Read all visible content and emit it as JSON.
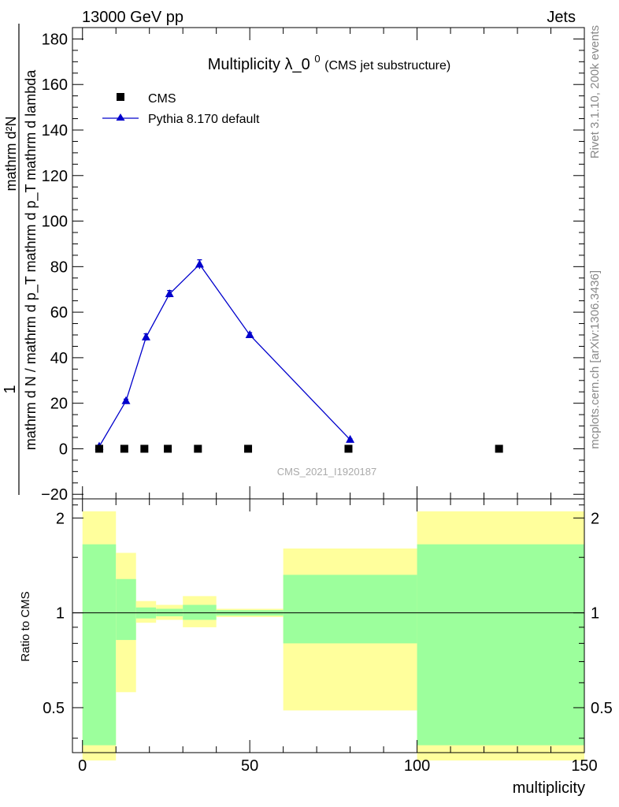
{
  "header": {
    "left": "13000 GeV pp",
    "right": "Jets"
  },
  "side_labels": {
    "rivet": "Rivet 3.1.10,  200k events",
    "mcplots": "mcplots.cern.ch [arXiv:1306.3436]"
  },
  "chart_data": {
    "type": "scatter",
    "title_main": "Multiplicity λ_0",
    "title_sup": "0",
    "title_sub": " (CMS jet substructure)",
    "analysis_label": "CMS_2021_I1920187",
    "ylabel_numerator": "1",
    "ylabel_denominator": "mathrm d N / mathrm d p_T mathrm d p_T mathrm d lambda",
    "ylabel_top": "mathrm d²N",
    "xlabel": "multiplicity",
    "ratio_ylabel": "Ratio to CMS",
    "xlim": [
      -3,
      150
    ],
    "ylim": [
      -22,
      185
    ],
    "ratio_ylim": [
      0.36,
      2.3
    ],
    "x_ticks": [
      "0",
      "50",
      "100",
      "150"
    ],
    "y_ticks": [
      "−20",
      "0",
      "20",
      "40",
      "60",
      "80",
      "100",
      "120",
      "140",
      "160",
      "180"
    ],
    "ratio_ticks": [
      "0.5",
      "1",
      "2"
    ],
    "legend": {
      "cms": "CMS",
      "pythia": "Pythia 8.170 default"
    },
    "colors": {
      "pythia": "#0000cc",
      "cms": "#000000",
      "band_inner": "#9cff9c",
      "band_outer": "#ffff9c"
    },
    "series": [
      {
        "name": "CMS",
        "marker": "square",
        "x": [
          5,
          12.5,
          18.5,
          25.5,
          34.5,
          49.5,
          79.5,
          124.5
        ],
        "y": [
          0,
          0,
          0,
          0,
          0,
          0,
          0,
          0
        ]
      },
      {
        "name": "Pythia 8.170 default",
        "marker": "triangle",
        "x": [
          5,
          13,
          19,
          26,
          35,
          50,
          80
        ],
        "y": [
          1,
          21,
          49,
          68,
          81,
          50,
          4
        ],
        "err": [
          0.3,
          0.8,
          1.5,
          1.5,
          2,
          1,
          0.3
        ]
      }
    ],
    "ratio_bands": [
      {
        "x0": 0,
        "x1": 10,
        "inner": [
          0.38,
          1.65
        ],
        "outer": [
          0.34,
          2.1
        ]
      },
      {
        "x0": 10,
        "x1": 16,
        "inner": [
          0.82,
          1.28
        ],
        "outer": [
          0.56,
          1.55
        ]
      },
      {
        "x0": 16,
        "x1": 22,
        "inner": [
          0.96,
          1.04
        ],
        "outer": [
          0.93,
          1.09
        ]
      },
      {
        "x0": 22,
        "x1": 30,
        "inner": [
          0.975,
          1.03
        ],
        "outer": [
          0.95,
          1.06
        ]
      },
      {
        "x0": 30,
        "x1": 40,
        "inner": [
          0.95,
          1.06
        ],
        "outer": [
          0.9,
          1.13
        ]
      },
      {
        "x0": 40,
        "x1": 60,
        "inner": [
          0.98,
          1.02
        ],
        "outer": [
          0.97,
          1.03
        ]
      },
      {
        "x0": 60,
        "x1": 100,
        "inner": [
          0.8,
          1.32
        ],
        "outer": [
          0.49,
          1.6
        ]
      },
      {
        "x0": 100,
        "x1": 150,
        "inner": [
          0.38,
          1.65
        ],
        "outer": [
          0.34,
          2.1
        ]
      }
    ]
  }
}
